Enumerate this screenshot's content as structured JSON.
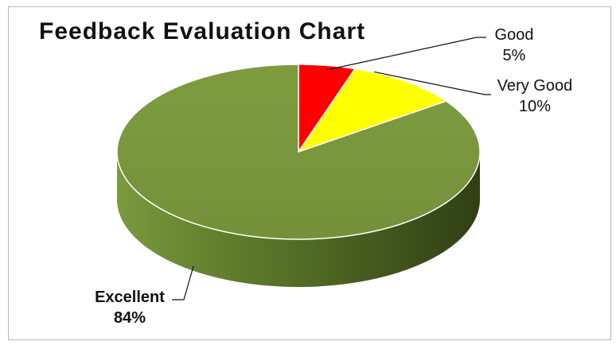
{
  "chart_data": {
    "type": "pie",
    "title": "Feedback Evaluation Chart",
    "style": "3d-pie",
    "slices": [
      {
        "label": "Good",
        "value": 5,
        "value_label": "5%",
        "color": "#ff0000"
      },
      {
        "label": "Very Good",
        "value": 10,
        "value_label": "10%",
        "color": "#ffff00"
      },
      {
        "label": "Excellent",
        "value": 84,
        "value_label": "84%",
        "color": "#77933c"
      }
    ],
    "legend": "none",
    "data_labels": "outside with leader lines"
  }
}
